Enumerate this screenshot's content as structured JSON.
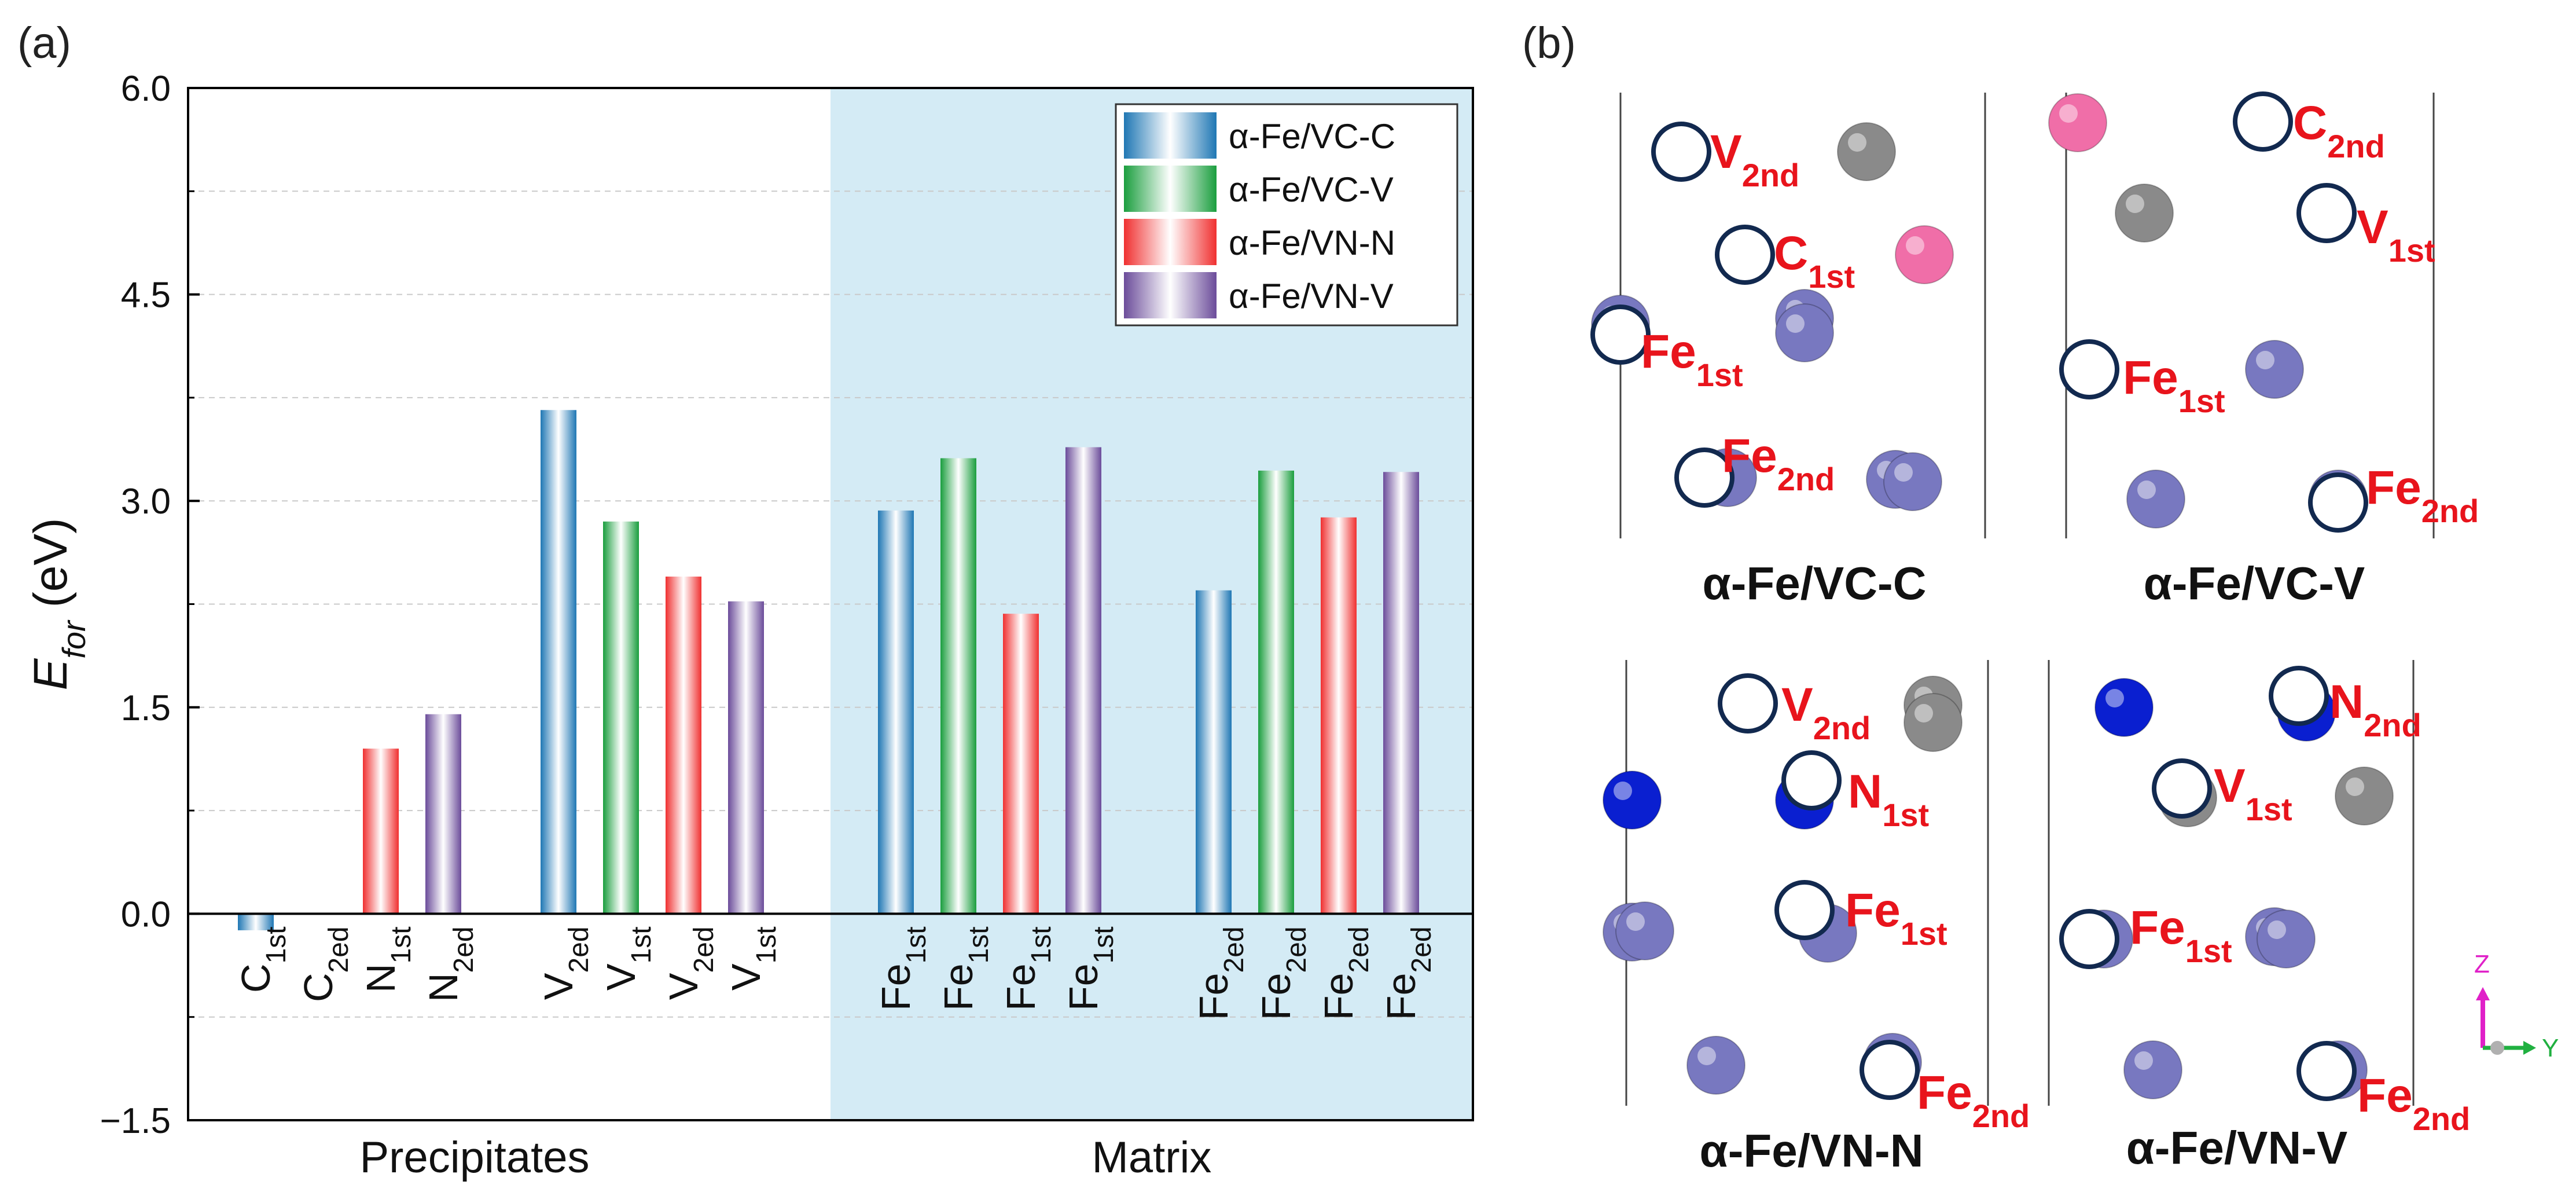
{
  "panel_a_label": "(a)",
  "panel_b_label": "(b)",
  "chart_data": {
    "type": "bar",
    "ylabel": {
      "main": "E",
      "sub": "for",
      "unit": " (eV)"
    },
    "ylim": [
      -1.5,
      6.0
    ],
    "yticks": [
      "−1.5",
      "0.0",
      "1.5",
      "3.0",
      "4.5",
      "6.0"
    ],
    "ytick_values": [
      -1.5,
      0.0,
      1.5,
      3.0,
      4.5,
      6.0
    ],
    "grid": "horizontal-dashed",
    "legend_position": "top-right",
    "legend": [
      {
        "name": "α-Fe/VC-C",
        "color": "#1f77b4"
      },
      {
        "name": "α-Fe/VC-V",
        "color": "#1a9e3e"
      },
      {
        "name": "α-Fe/VN-N",
        "color": "#f03030"
      },
      {
        "name": "α-Fe/VN-V",
        "color": "#6b4c9a"
      }
    ],
    "groups": [
      {
        "label": "Precipitates",
        "bars": [
          {
            "main": "C",
            "sub": "1st",
            "value": -0.12,
            "series": 0
          },
          {
            "main": "C",
            "sub": "2ed",
            "value": 0.0,
            "series": 1
          },
          {
            "main": "N",
            "sub": "1st",
            "value": 1.2,
            "series": 2
          },
          {
            "main": "N",
            "sub": "2ed",
            "value": 1.45,
            "series": 3
          },
          {
            "main": "V",
            "sub": "2ed",
            "value": 3.66,
            "series": 0
          },
          {
            "main": "V",
            "sub": "1st",
            "value": 2.85,
            "series": 1
          },
          {
            "main": "V",
            "sub": "2ed",
            "value": 2.45,
            "series": 2
          },
          {
            "main": "V",
            "sub": "1st",
            "value": 2.27,
            "series": 3
          }
        ]
      },
      {
        "label": "Matrix",
        "bars": [
          {
            "main": "Fe",
            "sub": "1st",
            "value": 2.93,
            "series": 0
          },
          {
            "main": "Fe",
            "sub": "1st",
            "value": 3.31,
            "series": 1
          },
          {
            "main": "Fe",
            "sub": "1st",
            "value": 2.18,
            "series": 2
          },
          {
            "main": "Fe",
            "sub": "1st",
            "value": 3.39,
            "series": 3
          },
          {
            "main": "Fe",
            "sub": "2ed",
            "value": 2.35,
            "series": 0
          },
          {
            "main": "Fe",
            "sub": "2ed",
            "value": 3.22,
            "series": 1
          },
          {
            "main": "Fe",
            "sub": "2ed",
            "value": 2.88,
            "series": 2
          },
          {
            "main": "Fe",
            "sub": "2ed",
            "value": 3.21,
            "series": 3
          }
        ]
      }
    ]
  },
  "structures": [
    {
      "title": "α-Fe/VC-C",
      "labels": [
        {
          "main": "V",
          "sub": "2nd"
        },
        {
          "main": "C",
          "sub": "1st"
        },
        {
          "main": "Fe",
          "sub": "1st"
        },
        {
          "main": "Fe",
          "sub": "2nd"
        }
      ]
    },
    {
      "title": "α-Fe/VC-V",
      "labels": [
        {
          "main": "C",
          "sub": "2nd"
        },
        {
          "main": "V",
          "sub": "1st"
        },
        {
          "main": "Fe",
          "sub": "1st"
        },
        {
          "main": "Fe",
          "sub": "2nd"
        }
      ]
    },
    {
      "title": "α-Fe/VN-N",
      "labels": [
        {
          "main": "V",
          "sub": "2nd"
        },
        {
          "main": "N",
          "sub": "1st"
        },
        {
          "main": "Fe",
          "sub": "1st"
        },
        {
          "main": "Fe",
          "sub": "2nd"
        }
      ]
    },
    {
      "title": "α-Fe/VN-V",
      "labels": [
        {
          "main": "N",
          "sub": "2nd"
        },
        {
          "main": "V",
          "sub": "1st"
        },
        {
          "main": "Fe",
          "sub": "1st"
        },
        {
          "main": "Fe",
          "sub": "2nd"
        }
      ]
    }
  ],
  "axes_icon": {
    "z": "Z",
    "y": "Y"
  },
  "colors": {
    "label_red": "#e8141c",
    "matrix_bg": "#d4ebf5",
    "fe_atom": "#7878c0",
    "v_atom": "#8a8a8a",
    "c_atom": "#f06ea8",
    "n_atom": "#0a1fd0",
    "vacancy_ring": "#12294f"
  }
}
